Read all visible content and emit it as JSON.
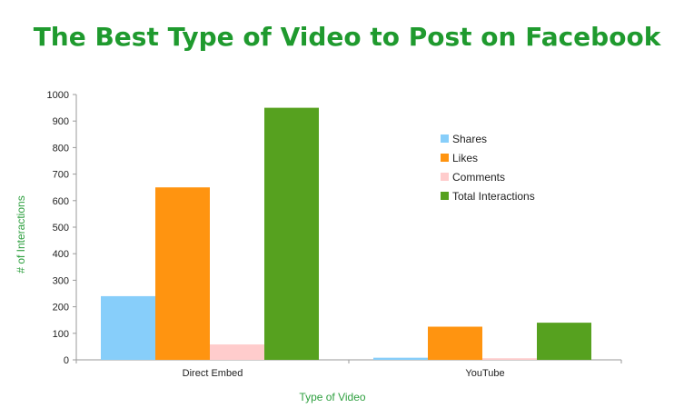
{
  "chart_data": {
    "type": "bar",
    "title": "The Best Type of Video to Post on Facebook",
    "xlabel": "Type of Video",
    "ylabel": "# of Interactions",
    "categories": [
      "Direct Embed",
      "YouTube"
    ],
    "ylim": [
      0,
      1000
    ],
    "yticks": [
      0,
      100,
      200,
      300,
      400,
      500,
      600,
      700,
      800,
      900,
      1000
    ],
    "series": [
      {
        "name": "Shares",
        "color": "#87cefa",
        "values": [
          240,
          8
        ]
      },
      {
        "name": "Likes",
        "color": "#ff9410",
        "values": [
          650,
          125
        ]
      },
      {
        "name": "Comments",
        "color": "#ffcccc",
        "values": [
          58,
          6
        ]
      },
      {
        "name": "Total Interactions",
        "color": "#56a11f",
        "values": [
          950,
          140
        ]
      }
    ],
    "legend_position": "upper-right",
    "grid": false
  }
}
